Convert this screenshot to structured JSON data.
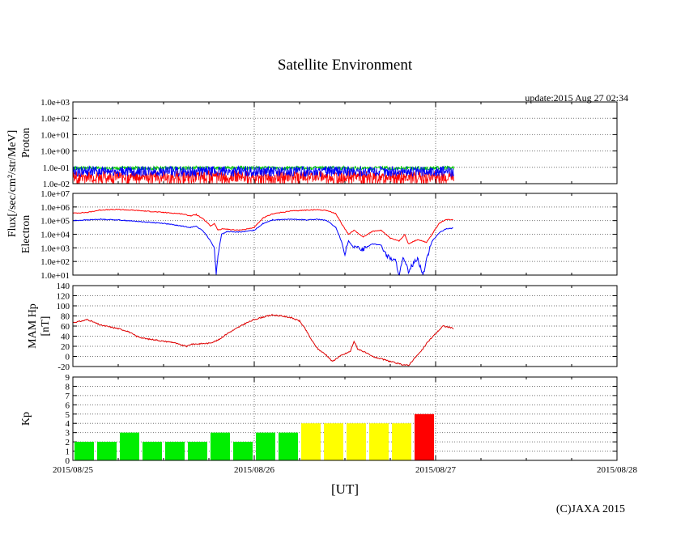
{
  "title": "Satellite Environment",
  "update": "update:2015 Aug 27 02:34",
  "copyright": "(C)JAXA 2015",
  "flux_label": "Flux[/sec/cm²/str/MeV]",
  "x_axis": {
    "label": "[UT]",
    "ticks": [
      "2015/08/25",
      "2015/08/26",
      "2015/08/27",
      "2015/08/28"
    ]
  },
  "chart_data": [
    {
      "type": "line",
      "ylabel": "Proton",
      "scale": "log",
      "yrange": [
        -2,
        3
      ],
      "y_ticks": [
        "1.0e-02",
        "1.0e-01",
        "1.0e+00",
        "1.0e+01",
        "1.0e+02",
        "1.0e+03"
      ],
      "colors": [
        "#ff0000",
        "#00cc00",
        "#0000ff"
      ],
      "x_day_start": 0,
      "x_day_end": 2.1,
      "series": [
        {
          "color": "#ff0000",
          "center": -1.55,
          "noise": 0.35
        },
        {
          "color": "#00cc00",
          "center": -1.05,
          "noise": 0.12
        },
        {
          "color": "#0000ff",
          "center": -1.25,
          "noise": 0.32
        }
      ]
    },
    {
      "type": "line",
      "ylabel": "Electron",
      "scale": "log",
      "yrange": [
        1,
        7
      ],
      "y_ticks": [
        "1.0e+01",
        "1.0e+02",
        "1.0e+03",
        "1.0e+04",
        "1.0e+05",
        "1.0e+06",
        "1.0e+07"
      ],
      "series": [
        {
          "color": "#ff0000",
          "points": [
            [
              0,
              5.55
            ],
            [
              0.08,
              5.6
            ],
            [
              0.15,
              5.78
            ],
            [
              0.25,
              5.82
            ],
            [
              0.35,
              5.75
            ],
            [
              0.5,
              5.6
            ],
            [
              0.6,
              5.5
            ],
            [
              0.65,
              5.35
            ],
            [
              0.68,
              5.45
            ],
            [
              0.72,
              5.1
            ],
            [
              0.76,
              4.6
            ],
            [
              0.78,
              4.8
            ],
            [
              0.8,
              4.3
            ],
            [
              0.83,
              4.4
            ],
            [
              0.9,
              4.3
            ],
            [
              0.95,
              4.35
            ],
            [
              1.0,
              4.5
            ],
            [
              1.05,
              5.2
            ],
            [
              1.1,
              5.5
            ],
            [
              1.2,
              5.7
            ],
            [
              1.3,
              5.78
            ],
            [
              1.35,
              5.8
            ],
            [
              1.4,
              5.75
            ],
            [
              1.45,
              5.5
            ],
            [
              1.48,
              4.8
            ],
            [
              1.52,
              4.0
            ],
            [
              1.55,
              4.3
            ],
            [
              1.6,
              3.8
            ],
            [
              1.65,
              4.2
            ],
            [
              1.7,
              4.3
            ],
            [
              1.75,
              3.7
            ],
            [
              1.8,
              3.5
            ],
            [
              1.83,
              4.0
            ],
            [
              1.85,
              3.3
            ],
            [
              1.9,
              3.6
            ],
            [
              1.95,
              3.4
            ],
            [
              1.98,
              4.0
            ],
            [
              2.02,
              4.8
            ],
            [
              2.06,
              5.1
            ],
            [
              2.1,
              5.05
            ]
          ]
        },
        {
          "color": "#0000ff",
          "points": [
            [
              0,
              5.0
            ],
            [
              0.08,
              5.05
            ],
            [
              0.15,
              5.1
            ],
            [
              0.25,
              5.05
            ],
            [
              0.35,
              4.95
            ],
            [
              0.5,
              4.8
            ],
            [
              0.6,
              4.6
            ],
            [
              0.65,
              4.5
            ],
            [
              0.68,
              4.6
            ],
            [
              0.72,
              4.2
            ],
            [
              0.76,
              3.5
            ],
            [
              0.78,
              3.0
            ],
            [
              0.79,
              1.0
            ],
            [
              0.8,
              2.5
            ],
            [
              0.82,
              4.0
            ],
            [
              0.85,
              4.2
            ],
            [
              0.9,
              4.15
            ],
            [
              0.95,
              4.2
            ],
            [
              1.0,
              4.3
            ],
            [
              1.05,
              4.8
            ],
            [
              1.1,
              5.05
            ],
            [
              1.2,
              5.1
            ],
            [
              1.3,
              5.05
            ],
            [
              1.35,
              5.1
            ],
            [
              1.4,
              5.0
            ],
            [
              1.45,
              4.5
            ],
            [
              1.48,
              3.5
            ],
            [
              1.5,
              2.6
            ],
            [
              1.52,
              3.5
            ],
            [
              1.55,
              3.0
            ],
            [
              1.6,
              2.9
            ],
            [
              1.65,
              3.3
            ],
            [
              1.7,
              3.2
            ],
            [
              1.73,
              2.4
            ],
            [
              1.78,
              2.0
            ],
            [
              1.8,
              1.0
            ],
            [
              1.82,
              2.2
            ],
            [
              1.85,
              1.3
            ],
            [
              1.9,
              2.3
            ],
            [
              1.93,
              1.0
            ],
            [
              1.96,
              2.6
            ],
            [
              1.98,
              3.5
            ],
            [
              2.02,
              4.1
            ],
            [
              2.06,
              4.4
            ],
            [
              2.1,
              4.45
            ]
          ]
        }
      ]
    },
    {
      "type": "line",
      "ylabel": "MAM Hp",
      "ylabel2": "[nT]",
      "scale": "linear",
      "yrange": [
        -20,
        140
      ],
      "y_ticks": [
        "-20",
        "0",
        "20",
        "40",
        "60",
        "80",
        "100",
        "120",
        "140"
      ],
      "series": [
        {
          "color": "#dd0000",
          "points": [
            [
              0,
              67
            ],
            [
              0.05,
              70
            ],
            [
              0.08,
              73
            ],
            [
              0.1,
              70
            ],
            [
              0.15,
              62
            ],
            [
              0.25,
              55
            ],
            [
              0.3,
              50
            ],
            [
              0.35,
              40
            ],
            [
              0.4,
              35
            ],
            [
              0.45,
              33
            ],
            [
              0.5,
              30
            ],
            [
              0.55,
              28
            ],
            [
              0.6,
              22
            ],
            [
              0.63,
              20
            ],
            [
              0.65,
              24
            ],
            [
              0.7,
              25
            ],
            [
              0.75,
              26
            ],
            [
              0.8,
              32
            ],
            [
              0.85,
              45
            ],
            [
              0.9,
              55
            ],
            [
              0.95,
              65
            ],
            [
              1.0,
              73
            ],
            [
              1.05,
              78
            ],
            [
              1.1,
              82
            ],
            [
              1.15,
              80
            ],
            [
              1.2,
              77
            ],
            [
              1.25,
              70
            ],
            [
              1.28,
              55
            ],
            [
              1.32,
              30
            ],
            [
              1.35,
              15
            ],
            [
              1.4,
              2
            ],
            [
              1.43,
              -10
            ],
            [
              1.47,
              0
            ],
            [
              1.5,
              5
            ],
            [
              1.53,
              10
            ],
            [
              1.55,
              30
            ],
            [
              1.57,
              15
            ],
            [
              1.6,
              10
            ],
            [
              1.65,
              0
            ],
            [
              1.7,
              -5
            ],
            [
              1.75,
              -10
            ],
            [
              1.8,
              -15
            ],
            [
              1.85,
              -18
            ],
            [
              1.88,
              -5
            ],
            [
              1.92,
              10
            ],
            [
              1.96,
              30
            ],
            [
              2.0,
              45
            ],
            [
              2.04,
              60
            ],
            [
              2.07,
              58
            ],
            [
              2.1,
              55
            ]
          ]
        }
      ]
    },
    {
      "type": "bar",
      "ylabel": "Kp",
      "yrange": [
        0,
        9
      ],
      "y_ticks": [
        "0",
        "1",
        "2",
        "3",
        "4",
        "5",
        "6",
        "7",
        "8",
        "9"
      ],
      "bars": [
        {
          "value": 2,
          "color": "#00ee00"
        },
        {
          "value": 2,
          "color": "#00ee00"
        },
        {
          "value": 3,
          "color": "#00ee00"
        },
        {
          "value": 2,
          "color": "#00ee00"
        },
        {
          "value": 2,
          "color": "#00ee00"
        },
        {
          "value": 2,
          "color": "#00ee00"
        },
        {
          "value": 3,
          "color": "#00ee00"
        },
        {
          "value": 2,
          "color": "#00ee00"
        },
        {
          "value": 3,
          "color": "#00ee00"
        },
        {
          "value": 3,
          "color": "#00ee00"
        },
        {
          "value": 4,
          "color": "#ffff00"
        },
        {
          "value": 4,
          "color": "#ffff00"
        },
        {
          "value": 4,
          "color": "#ffff00"
        },
        {
          "value": 4,
          "color": "#ffff00"
        },
        {
          "value": 4,
          "color": "#ffff00"
        },
        {
          "value": 5,
          "color": "#ff0000"
        }
      ]
    }
  ]
}
